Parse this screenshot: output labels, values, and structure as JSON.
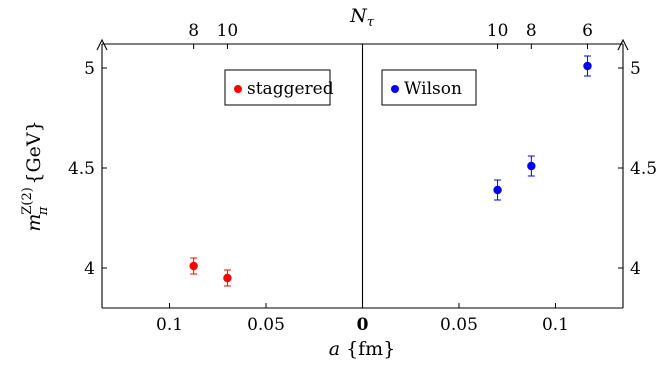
{
  "chart_data": {
    "type": "scatter",
    "x_axis": {
      "label_var": "a",
      "label_unit": "{fm}",
      "ticks_left": [
        "0.1",
        "0.05"
      ],
      "tick_zero": "0",
      "ticks_right": [
        "0.05",
        "0.1"
      ],
      "xlim": [
        -0.135,
        0.135
      ]
    },
    "y_axis": {
      "label_base": "m",
      "label_sub": "π",
      "label_sup": "Z(2)",
      "label_unit": "{GeV}",
      "ticks": [
        "4",
        "4.5",
        "5"
      ],
      "tick_values": [
        4,
        4.5,
        5
      ],
      "ylim": [
        3.8,
        5.12
      ]
    },
    "top_axis": {
      "label": "N",
      "label_sub": "τ",
      "ticks": [
        {
          "label": "8",
          "a": -0.0875
        },
        {
          "label": "10",
          "a": -0.07
        },
        {
          "label": "10",
          "a": 0.07
        },
        {
          "label": "8",
          "a": 0.0875
        },
        {
          "label": "6",
          "a": 0.1166
        }
      ]
    },
    "series": [
      {
        "name": "staggered",
        "color": "#ff0000",
        "points": [
          {
            "a": -0.0875,
            "y": 4.01,
            "err": 0.04
          },
          {
            "a": -0.07,
            "y": 3.95,
            "err": 0.04
          }
        ]
      },
      {
        "name": "Wilson",
        "color": "#0000ff",
        "points": [
          {
            "a": 0.07,
            "y": 4.39,
            "err": 0.05
          },
          {
            "a": 0.0875,
            "y": 4.51,
            "err": 0.05
          },
          {
            "a": 0.1166,
            "y": 5.01,
            "err": 0.05
          }
        ]
      }
    ]
  }
}
